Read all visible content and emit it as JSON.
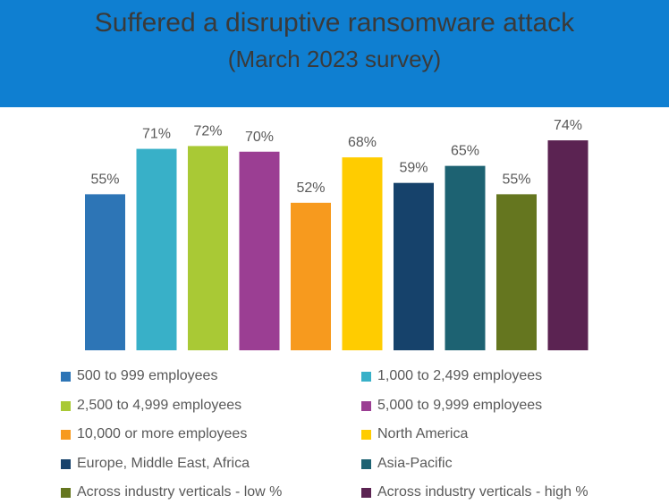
{
  "header": {
    "title": "Suffered a disruptive ransomware attack",
    "subtitle": "(March 2023 survey)",
    "background_color": "#0f7fd1"
  },
  "chart_data": {
    "type": "bar",
    "title": "Suffered a disruptive ransomware attack",
    "subtitle": "(March 2023 survey)",
    "xlabel": "",
    "ylabel": "",
    "ylim": [
      0,
      80
    ],
    "grid": false,
    "legend_position": "bottom",
    "categories": [
      "500 to 999 employees",
      "1,000 to 2,499 employees",
      "2,500 to 4,999 employees",
      "5,000 to 9,999 employees",
      "10,000 or more employees",
      "North America",
      "Europe, Middle East, Africa",
      "Asia-Pacific",
      "Across industry verticals - low %",
      "Across industry verticals - high %"
    ],
    "values": [
      55,
      71,
      72,
      70,
      52,
      68,
      59,
      65,
      55,
      74
    ],
    "data_labels": [
      "55%",
      "71%",
      "72%",
      "70%",
      "52%",
      "68%",
      "59%",
      "65%",
      "55%",
      "74%"
    ],
    "colors": [
      "#2d75b6",
      "#38b0c8",
      "#a9c935",
      "#9b3e93",
      "#f79a1e",
      "#ffcc00",
      "#16426b",
      "#1d6272",
      "#65761f",
      "#5b2352"
    ]
  }
}
